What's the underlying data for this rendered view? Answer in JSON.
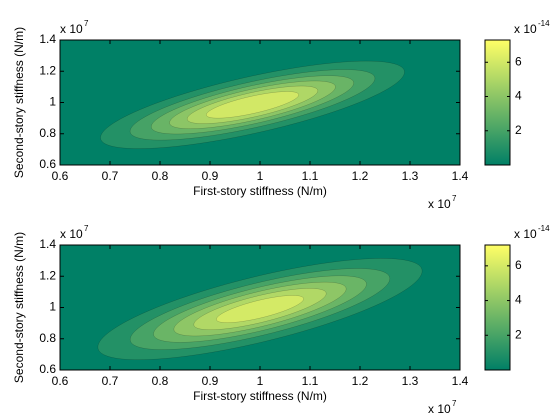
{
  "chart_data": [
    {
      "type": "contour",
      "xlabel": "First-story stiffness (N/m)",
      "ylabel": "Second-story stiffness (N/m)",
      "x_multiplier": [
        "x 10",
        "7"
      ],
      "y_multiplier": [
        "x 10",
        "7"
      ],
      "c_multiplier": [
        "x 10",
        "-14"
      ],
      "xlim": [
        0.6,
        1.4
      ],
      "ylim": [
        0.6,
        1.4
      ],
      "xticks": [
        0.6,
        0.7,
        0.8,
        0.9,
        1,
        1.1,
        1.2,
        1.3,
        1.4
      ],
      "yticks": [
        0.6,
        0.8,
        1,
        1.2,
        1.4
      ],
      "colormap": "summer",
      "clim": [
        0,
        7.3
      ],
      "cticks": [
        2,
        4,
        6
      ],
      "peak": 7.2,
      "mean": [
        0.985,
        0.985
      ],
      "sd": [
        0.153,
        0.141
      ],
      "corr": 0.75,
      "levels": [
        1,
        2,
        3,
        4,
        5,
        6
      ]
    },
    {
      "type": "contour",
      "xlabel": "First-story stiffness (N/m)",
      "ylabel": "Second-story stiffness (N/m)",
      "x_multiplier": [
        "x 10",
        "7"
      ],
      "y_multiplier": [
        "x 10",
        "7"
      ],
      "c_multiplier": [
        "x 10",
        "-14"
      ],
      "xlim": [
        0.6,
        1.4
      ],
      "ylim": [
        0.6,
        1.4
      ],
      "xticks": [
        0.6,
        0.7,
        0.8,
        0.9,
        1,
        1.1,
        1.2,
        1.3,
        1.4
      ],
      "yticks": [
        0.6,
        0.8,
        1,
        1.2,
        1.4
      ],
      "colormap": "summer",
      "clim": [
        0,
        7.2
      ],
      "cticks": [
        2,
        4,
        6
      ],
      "peak": 6.9,
      "mean": [
        1.0,
        0.99
      ],
      "sd": [
        0.165,
        0.165
      ],
      "corr": 0.75,
      "levels": [
        1,
        2,
        3,
        4,
        5,
        6
      ]
    }
  ]
}
